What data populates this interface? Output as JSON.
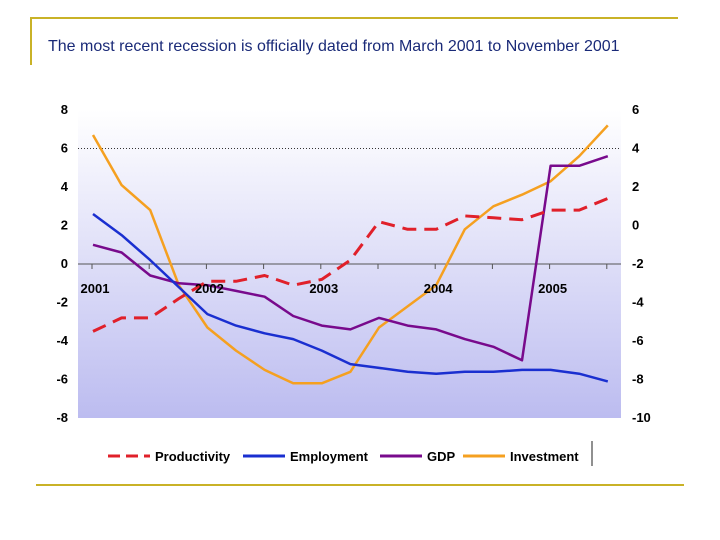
{
  "slide": {
    "title": "The most recent recession is officially dated from March 2001 to November 2001"
  },
  "chart_data": {
    "type": "line",
    "plot_background": "gradient #ffffff to #bcbcf0",
    "grid": false,
    "legend_position": "bottom",
    "y_left": {
      "ticks": [
        8,
        6,
        4,
        2,
        0,
        -2,
        -4,
        -6,
        -8
      ],
      "ylim": [
        -8,
        8
      ]
    },
    "y_right": {
      "ticks": [
        6,
        4,
        2,
        0,
        -2,
        -4,
        -6,
        -8,
        -10
      ],
      "ylim": [
        -10,
        6
      ]
    },
    "x_labels": [
      "2001",
      "2002",
      "2003",
      "2004",
      "2005"
    ],
    "x_label_points": [
      0,
      4,
      8,
      12,
      16
    ],
    "x": [
      0,
      1,
      2,
      3,
      4,
      5,
      6,
      7,
      8,
      9,
      10,
      11,
      12,
      13,
      14,
      15,
      16,
      17,
      18
    ],
    "series": [
      {
        "name": "Productivity",
        "axis": "left",
        "color": "#e0202a",
        "dash": true,
        "values": [
          -3.5,
          -2.8,
          -2.8,
          -1.8,
          -0.9,
          -0.9,
          -0.6,
          -1.1,
          -0.8,
          0.2,
          2.2,
          1.8,
          1.8,
          2.5,
          2.4,
          2.3,
          2.8,
          2.8,
          3.4
        ]
      },
      {
        "name": "Employment",
        "axis": "left",
        "color": "#1a2fd0",
        "dash": false,
        "values": [
          2.6,
          1.5,
          0.2,
          -1.2,
          -2.6,
          -3.2,
          -3.6,
          -3.9,
          -4.5,
          -5.2,
          -5.4,
          -5.6,
          -5.7,
          -5.6,
          -5.6,
          -5.5,
          -5.5,
          -5.7,
          -6.1
        ]
      },
      {
        "name": "GDP",
        "axis": "right",
        "color": "#780a8c",
        "dash": false,
        "values": [
          -1.0,
          -1.4,
          -2.6,
          -3.0,
          -3.1,
          -3.4,
          -3.7,
          -4.7,
          -5.2,
          -5.4,
          -4.8,
          -5.2,
          -5.4,
          -5.9,
          -6.3,
          -7.0,
          3.1,
          3.1,
          3.6
        ]
      },
      {
        "name": "Investment",
        "axis": "right",
        "color": "#f5a020",
        "dash": false,
        "values": [
          4.7,
          2.1,
          0.8,
          -3.1,
          -5.3,
          -6.5,
          -7.5,
          -8.2,
          -8.2,
          -7.6,
          -5.3,
          -4.2,
          -3.1,
          -0.2,
          1.0,
          1.6,
          2.3,
          3.6,
          5.2
        ]
      }
    ]
  }
}
